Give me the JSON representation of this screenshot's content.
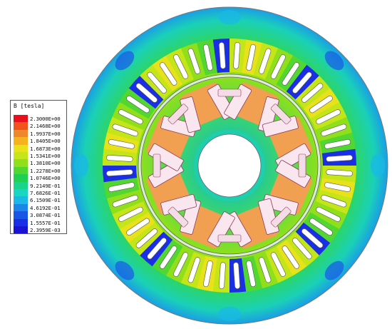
{
  "legend": {
    "title": "B [tesla]",
    "entries": [
      {
        "label": "2.3000E+00",
        "color": "#e8101a"
      },
      {
        "label": "2.1468E+00",
        "color": "#f2521c"
      },
      {
        "label": "1.9937E+00",
        "color": "#f0862c"
      },
      {
        "label": "1.8405E+00",
        "color": "#f5b21e"
      },
      {
        "label": "1.6873E+00",
        "color": "#e8e21a"
      },
      {
        "label": "1.5341E+00",
        "color": "#c4e618"
      },
      {
        "label": "1.3810E+00",
        "color": "#8fe01a"
      },
      {
        "label": "1.2278E+00",
        "color": "#52d630"
      },
      {
        "label": "1.0746E+00",
        "color": "#20d050"
      },
      {
        "label": "9.2149E-01",
        "color": "#1ad48c"
      },
      {
        "label": "7.6826E-01",
        "color": "#1ad4c4"
      },
      {
        "label": "6.1509E-01",
        "color": "#1ab8e6"
      },
      {
        "label": "4.6192E-01",
        "color": "#1a86e6"
      },
      {
        "label": "3.0874E-01",
        "color": "#1a56e6"
      },
      {
        "label": "1.5557E-01",
        "color": "#1a2ee6"
      },
      {
        "label": "2.3959E-03",
        "color": "#1a14d2"
      }
    ]
  },
  "field_colors": {
    "stator_yoke": "#2ed65a",
    "stator_yoke_low": "#1ad0b8",
    "stator_yoke_min": "#1a3ee6",
    "tooth_high": "#c4e618",
    "tooth_mid": "#8fe01a",
    "tooth_low": "#1a2ee6",
    "rotor_core": "#3fd66a",
    "rotor_bridge": "#f0a050",
    "magnet_pocket": "#fae6ee",
    "winding_slot": "#ffffff",
    "shaft": "#ffffff"
  },
  "geometry_info": {
    "stator_slots": 48,
    "rotor_poles": 8
  }
}
